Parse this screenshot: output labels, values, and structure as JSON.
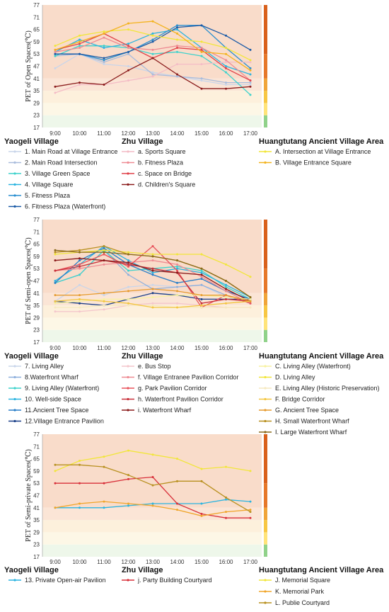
{
  "colors": {
    "band_hot": "#f9dcca",
    "band_warm": "#fbe5d6",
    "band_slightly_warm": "#fdf0dc",
    "band_neutral": "#fdf7e6",
    "band_cool": "#eef7ea",
    "scale_bar": [
      "#90d28a",
      "#ffe47a",
      "#f7c744",
      "#f0a53a",
      "#e6782a",
      "#d9611c"
    ]
  },
  "x_categories": [
    "9:00",
    "10:00",
    "11:00",
    "12:00",
    "13:00",
    "14:00",
    "15:00",
    "16:00",
    "17:00"
  ],
  "y_ticks": [
    "17",
    "23",
    "29",
    "35",
    "41",
    "47",
    "53",
    "59",
    "65",
    "71",
    "77"
  ],
  "legend_groups": [
    "Yaogeli Village",
    "Zhu Village",
    "Huangtutang Ancient Village Area"
  ],
  "chart_data": [
    {
      "type": "line",
      "ylabel": "PET of Open Spaces(℃)",
      "ylim": [
        17,
        77
      ],
      "categories": [
        "9:00",
        "10:00",
        "11:00",
        "12:00",
        "13:00",
        "14:00",
        "15:00",
        "16:00",
        "17:00"
      ],
      "series": [
        {
          "name": "1. Main Road at Village Entrance",
          "group": 0,
          "color": "#c9d5ea",
          "values": [
            46,
            53,
            48,
            47,
            44,
            42,
            40,
            38,
            38
          ]
        },
        {
          "name": "2. Main Road Intersection",
          "group": 0,
          "color": "#a9bcdc",
          "values": [
            52,
            53,
            49,
            53,
            43,
            42,
            41,
            39,
            39
          ]
        },
        {
          "name": "3. Village Green Space",
          "group": 0,
          "color": "#3fd2cc",
          "values": [
            52,
            57,
            57,
            56,
            53,
            54,
            52,
            44,
            33
          ]
        },
        {
          "name": "4. Village Square",
          "group": 0,
          "color": "#2bb4e0",
          "values": [
            54,
            60,
            56,
            58,
            63,
            65,
            56,
            47,
            43
          ]
        },
        {
          "name": "5. Fitness Plaza",
          "group": 0,
          "color": "#2a8fd0",
          "values": [
            53,
            53,
            50,
            54,
            60,
            67,
            67,
            56,
            46
          ]
        },
        {
          "name": "6. Fitness Plaza (Waterfront)",
          "group": 0,
          "color": "#1a5aa6",
          "values": [
            53,
            53,
            51,
            54,
            59,
            66,
            67,
            62,
            55
          ]
        },
        {
          "name": "a. Sports Square",
          "group": 1,
          "color": "#f4bcc6",
          "values": [
            34,
            38,
            38,
            40,
            42,
            48,
            48,
            49,
            49
          ]
        },
        {
          "name": "b. Fitness Plaza",
          "group": 1,
          "color": "#ee8b93",
          "values": [
            54,
            56,
            61,
            56,
            55,
            57,
            56,
            50,
            40
          ]
        },
        {
          "name": "c. Space on Bridge",
          "group": 1,
          "color": "#e0424a",
          "values": [
            55,
            58,
            63,
            57,
            51,
            56,
            55,
            46,
            40
          ]
        },
        {
          "name": "d. Children's Square",
          "group": 1,
          "color": "#8b1c1c",
          "values": [
            37,
            39,
            38,
            45,
            51,
            43,
            36,
            36,
            37
          ]
        },
        {
          "name": "A. Intersection at Village Entrance",
          "group": 2,
          "color": "#f1e63a",
          "values": [
            57,
            62,
            64,
            65,
            62,
            60,
            59,
            56,
            50
          ]
        },
        {
          "name": "B. Village Entrance Square",
          "group": 2,
          "color": "#f3b31e",
          "values": [
            55,
            59,
            63,
            68,
            69,
            63,
            54,
            53,
            45
          ]
        }
      ]
    },
    {
      "type": "line",
      "ylabel": "PET of Semi-open Spaces(℃)",
      "ylim": [
        17,
        77
      ],
      "categories": [
        "9:00",
        "10:00",
        "11:00",
        "12:00",
        "13:00",
        "14:00",
        "15:00",
        "16:00",
        "17:00"
      ],
      "series": [
        {
          "name": "7. Living Alley",
          "group": 0,
          "color": "#c9d5ea",
          "values": [
            37,
            45,
            40,
            44,
            45,
            44,
            45,
            39,
            38
          ]
        },
        {
          "name": "8.Waterfront Wharf",
          "group": 0,
          "color": "#8fb0dd",
          "values": [
            46,
            50,
            62,
            50,
            43,
            44,
            45,
            40,
            36
          ]
        },
        {
          "name": "9. Living Alley (Waterfront)",
          "group": 0,
          "color": "#3fd2cc",
          "values": [
            46,
            50,
            62,
            52,
            53,
            54,
            52,
            44,
            38
          ]
        },
        {
          "name": "10. Well-side Space",
          "group": 0,
          "color": "#2bb4e0",
          "values": [
            47,
            55,
            64,
            57,
            51,
            53,
            51,
            45,
            39
          ]
        },
        {
          "name": "11.Ancient Tree Space",
          "group": 0,
          "color": "#2a7fc8",
          "values": [
            46,
            57,
            63,
            55,
            50,
            46,
            48,
            42,
            38
          ]
        },
        {
          "name": "12.Village Entrance Pavilion",
          "group": 0,
          "color": "#1a3f88",
          "values": [
            37,
            36,
            35,
            38,
            41,
            40,
            38,
            38,
            38
          ]
        },
        {
          "name": "e. Bus Stop",
          "group": 1,
          "color": "#f4c6cc",
          "values": [
            32,
            32,
            33,
            35,
            36,
            36,
            35,
            34,
            34
          ]
        },
        {
          "name": "f. Village Entranee Pavilion Corridor",
          "group": 1,
          "color": "#ee8b93",
          "values": [
            52,
            53,
            55,
            56,
            57,
            55,
            49,
            42,
            36
          ]
        },
        {
          "name": "g. Park Pavilion Corridor",
          "group": 1,
          "color": "#e8545c",
          "values": [
            52,
            55,
            60,
            54,
            64,
            52,
            34,
            40,
            36
          ]
        },
        {
          "name": "h. Waterfront Pavilion Corridor",
          "group": 1,
          "color": "#c8303a",
          "values": [
            52,
            54,
            57,
            55,
            53,
            51,
            36,
            38,
            37
          ]
        },
        {
          "name": "i. Waterfront Wharf",
          "group": 1,
          "color": "#8b1c1c",
          "values": [
            57,
            58,
            57,
            56,
            52,
            51,
            50,
            43,
            37
          ]
        },
        {
          "name": "C. Living Alley (Waterfront)",
          "group": 2,
          "color": "#f7f1a0",
          "values": [
            36,
            37,
            38,
            38,
            39,
            40,
            40,
            39,
            38
          ]
        },
        {
          "name": "D. Living Alley",
          "group": 2,
          "color": "#f1e63a",
          "values": [
            60,
            61,
            62,
            61,
            60,
            60,
            60,
            55,
            49
          ]
        },
        {
          "name": "E. Living Alley (Historic Preservation)",
          "group": 2,
          "color": "#f6e9c0",
          "values": [
            34,
            34,
            35,
            35,
            35,
            34,
            34,
            34,
            34
          ]
        },
        {
          "name": "F. Bridge Corridor",
          "group": 2,
          "color": "#f3c640",
          "values": [
            37,
            38,
            37,
            36,
            34,
            34,
            35,
            36,
            37
          ]
        },
        {
          "name": "G. Ancient Tree Space",
          "group": 2,
          "color": "#e69a2e",
          "values": [
            40,
            40,
            41,
            42,
            43,
            42,
            40,
            40,
            37
          ]
        },
        {
          "name": "H. Small Waterfront Wharf",
          "group": 2,
          "color": "#b8901f",
          "values": [
            61,
            62,
            64,
            60,
            59,
            57,
            53,
            47,
            39
          ]
        },
        {
          "name": "I. Large Waterfront Wharf",
          "group": 2,
          "color": "#8a6a1a",
          "values": [
            62,
            61,
            61,
            60,
            59,
            57,
            53,
            47,
            39
          ]
        }
      ]
    },
    {
      "type": "line",
      "ylabel": "PET of Semi-private Spaces(℃)",
      "ylim": [
        17,
        77
      ],
      "categories": [
        "9:00",
        "10:00",
        "11:00",
        "12:00",
        "13:00",
        "14:00",
        "15:00",
        "16:00",
        "17:00"
      ],
      "series": [
        {
          "name": "13. Private Open-air Pavilion",
          "group": 0,
          "color": "#2bb4e0",
          "values": [
            41,
            41,
            41,
            42,
            43,
            43,
            43,
            45,
            44
          ]
        },
        {
          "name": "j. Party Building Courtyard",
          "group": 1,
          "color": "#d8303a",
          "values": [
            53,
            53,
            53,
            55,
            56,
            43,
            38,
            36,
            36
          ]
        },
        {
          "name": "J. Memorial Square",
          "group": 2,
          "color": "#f1e63a",
          "values": [
            59,
            64,
            66,
            69,
            67,
            65,
            60,
            61,
            59
          ]
        },
        {
          "name": "K. Memorial Park",
          "group": 2,
          "color": "#f0a52a",
          "values": [
            41,
            43,
            44,
            43,
            42,
            40,
            37,
            39,
            40
          ]
        },
        {
          "name": "L. Publie Courtyard",
          "group": 2,
          "color": "#b8901f",
          "values": [
            62,
            62,
            61,
            57,
            52,
            54,
            54,
            46,
            39
          ]
        }
      ]
    }
  ]
}
